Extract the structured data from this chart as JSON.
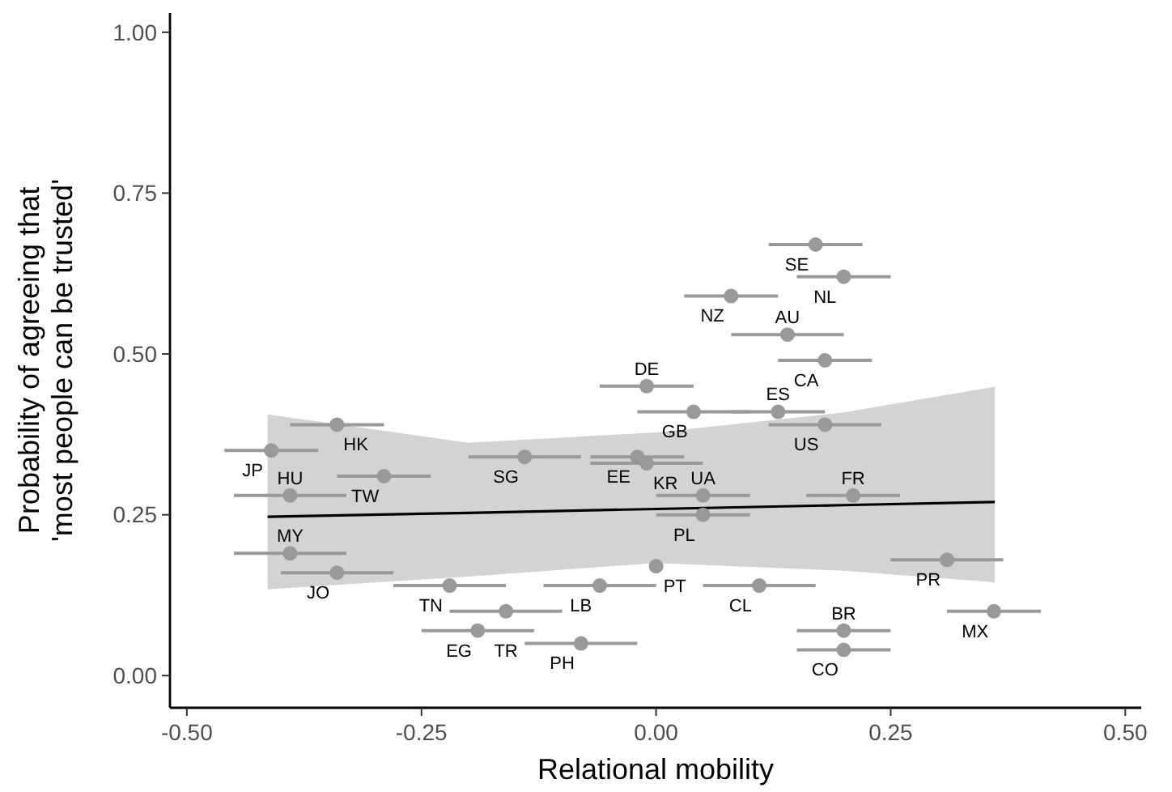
{
  "chart_data": {
    "type": "scatter",
    "xlabel": "Relational mobility",
    "ylabel": "Probability of agreeing that\n'most people can be trusted'",
    "xlim": [
      -0.518,
      0.517
    ],
    "xticks": [
      {
        "value": -0.5,
        "label": "-0.50"
      },
      {
        "value": -0.25,
        "label": "-0.25"
      },
      {
        "value": 0,
        "label": "0.00"
      },
      {
        "value": 0.25,
        "label": "0.25"
      },
      {
        "value": 0.5,
        "label": "0.50"
      }
    ],
    "ylim": [
      -0.05,
      1.03
    ],
    "yticks": [
      {
        "value": 0,
        "label": "0.00"
      },
      {
        "value": 0.25,
        "label": "0.25"
      },
      {
        "value": 0.5,
        "label": "0.50"
      },
      {
        "value": 0.75,
        "label": "0.75"
      },
      {
        "value": 1,
        "label": "1.00"
      }
    ],
    "grid": false,
    "series": [
      {
        "type": "line",
        "color": "#000000",
        "x": [
          -0.414,
          -0.2,
          0,
          0.2,
          0.361
        ],
        "values": [
          0.247,
          0.253,
          0.259,
          0.265,
          0.27
        ],
        "lower": [
          0.134,
          0.154,
          0.175,
          0.163,
          0.145
        ],
        "upper": [
          0.406,
          0.362,
          0.378,
          0.409,
          0.449
        ]
      },
      {
        "marker": "circle",
        "color": "#999999",
        "x": [
          -0.41,
          -0.34,
          -0.39,
          -0.29,
          -0.39,
          -0.34,
          -0.14,
          -0.22,
          -0.06,
          -0.16,
          -0.19,
          -0.08,
          0.0,
          -0.02,
          -0.01,
          -0.01,
          0.04,
          0.05,
          0.05,
          0.13,
          0.18,
          0.08,
          0.14,
          0.17,
          0.2,
          0.18,
          0.21,
          0.31,
          0.11,
          0.2,
          0.2,
          0.36
        ],
        "values": [
          0.35,
          0.39,
          0.28,
          0.31,
          0.19,
          0.16,
          0.34,
          0.14,
          0.14,
          0.1,
          0.07,
          0.05,
          0.17,
          0.34,
          0.33,
          0.45,
          0.41,
          0.28,
          0.25,
          0.41,
          0.39,
          0.59,
          0.53,
          0.67,
          0.62,
          0.49,
          0.28,
          0.18,
          0.14,
          0.07,
          0.04,
          0.1
        ],
        "xerrors": [
          0.05,
          0.05,
          0.06,
          0.05,
          0.06,
          0.06,
          0.06,
          0.06,
          0.06,
          0.06,
          0.06,
          0.06,
          null,
          0.05,
          0.06,
          0.05,
          0.06,
          0.05,
          0.05,
          0.05,
          0.06,
          0.05,
          0.06,
          0.05,
          0.05,
          0.05,
          0.05,
          0.06,
          0.06,
          0.05,
          0.05,
          0.05
        ]
      }
    ],
    "annotations": [
      {
        "text": "JP",
        "x": -0.41,
        "y": 0.35
      },
      {
        "text": "HK",
        "x": -0.34,
        "y": 0.39
      },
      {
        "text": "HU",
        "x": -0.39,
        "y": 0.28
      },
      {
        "text": "TW",
        "x": -0.29,
        "y": 0.31
      },
      {
        "text": "MY",
        "x": -0.39,
        "y": 0.19
      },
      {
        "text": "JO",
        "x": -0.34,
        "y": 0.16
      },
      {
        "text": "SG",
        "x": -0.14,
        "y": 0.34
      },
      {
        "text": "TN",
        "x": -0.22,
        "y": 0.14
      },
      {
        "text": "LB",
        "x": -0.06,
        "y": 0.14
      },
      {
        "text": "TR",
        "x": -0.16,
        "y": 0.1
      },
      {
        "text": "EG",
        "x": -0.19,
        "y": 0.07
      },
      {
        "text": "PH",
        "x": -0.08,
        "y": 0.05
      },
      {
        "text": "PT",
        "x": 0.0,
        "y": 0.17
      },
      {
        "text": "EE",
        "x": -0.02,
        "y": 0.34
      },
      {
        "text": "KR",
        "x": -0.01,
        "y": 0.33
      },
      {
        "text": "DE",
        "x": -0.01,
        "y": 0.45
      },
      {
        "text": "GB",
        "x": 0.04,
        "y": 0.41
      },
      {
        "text": "UA",
        "x": 0.05,
        "y": 0.28
      },
      {
        "text": "PL",
        "x": 0.05,
        "y": 0.25
      },
      {
        "text": "ES",
        "x": 0.13,
        "y": 0.41
      },
      {
        "text": "US",
        "x": 0.18,
        "y": 0.39
      },
      {
        "text": "NZ",
        "x": 0.08,
        "y": 0.59
      },
      {
        "text": "AU",
        "x": 0.14,
        "y": 0.53
      },
      {
        "text": "SE",
        "x": 0.17,
        "y": 0.67
      },
      {
        "text": "NL",
        "x": 0.2,
        "y": 0.62
      },
      {
        "text": "CA",
        "x": 0.18,
        "y": 0.49
      },
      {
        "text": "FR",
        "x": 0.21,
        "y": 0.28
      },
      {
        "text": "PR",
        "x": 0.31,
        "y": 0.18
      },
      {
        "text": "CL",
        "x": 0.11,
        "y": 0.14
      },
      {
        "text": "BR",
        "x": 0.2,
        "y": 0.07
      },
      {
        "text": "CO",
        "x": 0.2,
        "y": 0.04
      },
      {
        "text": "MX",
        "x": 0.36,
        "y": 0.1
      }
    ]
  }
}
